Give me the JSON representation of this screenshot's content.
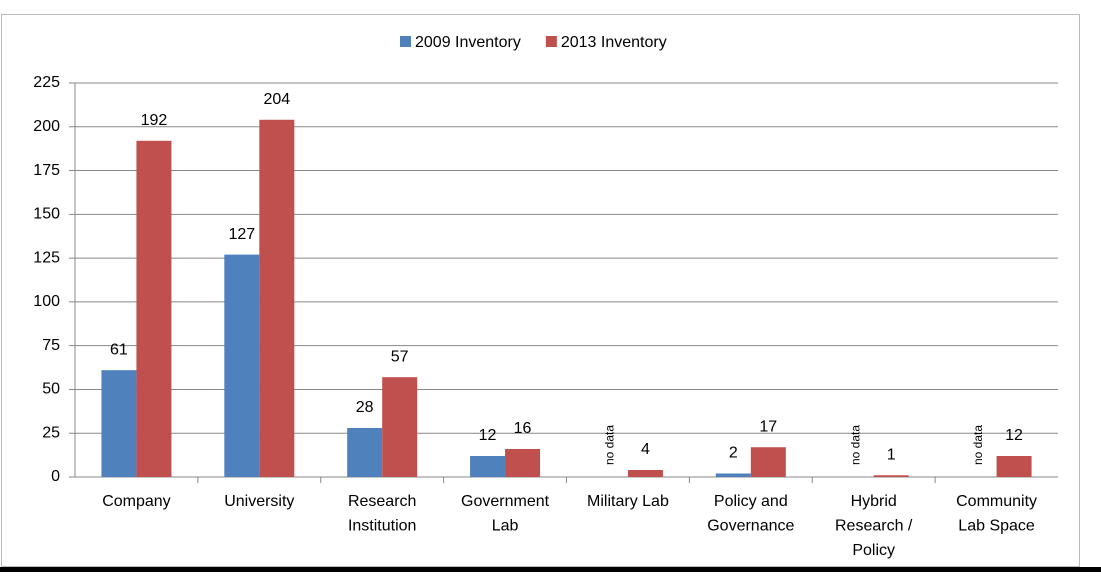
{
  "chart_data": {
    "type": "bar",
    "categories": [
      "Company",
      "University",
      "Research Institution",
      "Government Lab",
      "Military Lab",
      "Policy and Governance",
      "Hybrid Research / Policy",
      "Community Lab Space"
    ],
    "series": [
      {
        "name": "2009 Inventory",
        "color": "#4f81bd",
        "values": [
          61,
          127,
          28,
          12,
          null,
          2,
          null,
          null
        ],
        "value_labels": [
          "61",
          "127",
          "28",
          "12",
          "no data",
          "2",
          "no data",
          "no data"
        ]
      },
      {
        "name": "2013 Inventory",
        "color": "#c0504d",
        "values": [
          192,
          204,
          57,
          16,
          4,
          17,
          1,
          12
        ]
      }
    ],
    "ylim": [
      0,
      225
    ],
    "yticks": [
      0,
      25,
      50,
      75,
      100,
      125,
      150,
      175,
      200,
      225
    ],
    "grid": true,
    "legend": "top"
  }
}
